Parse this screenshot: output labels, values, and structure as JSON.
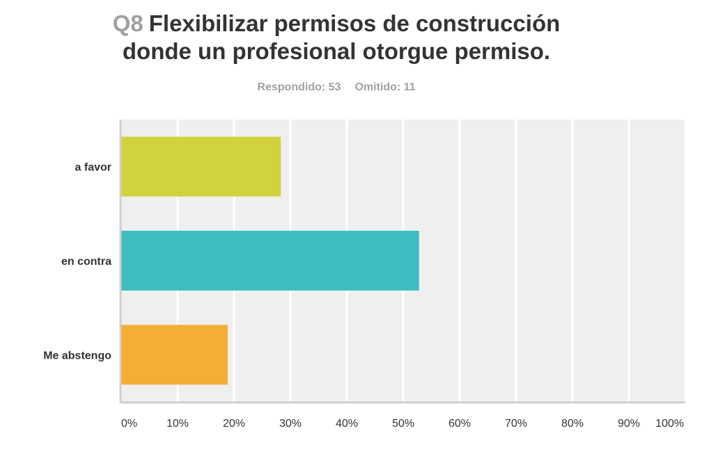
{
  "question": {
    "number": "Q8",
    "title_line1": "Flexibilizar permisos de construcción",
    "title_line2": "donde un profesional otorgue permiso."
  },
  "stats": {
    "answered": "Respondido: 53",
    "skipped": "Omitido: 11"
  },
  "chart_data": {
    "type": "bar",
    "orientation": "horizontal",
    "categories": [
      "a favor",
      "en contra",
      "Me abstengo"
    ],
    "values": [
      28.3,
      52.8,
      18.9
    ],
    "colors": [
      "#d0d23e",
      "#3dbdc0",
      "#f4ae35"
    ],
    "xlim": [
      0,
      100
    ],
    "x_tick_labels": [
      "0%",
      "10%",
      "20%",
      "30%",
      "40%",
      "50%",
      "60%",
      "70%",
      "80%",
      "90%",
      "100%"
    ],
    "grid": true,
    "background": "#efefef"
  }
}
